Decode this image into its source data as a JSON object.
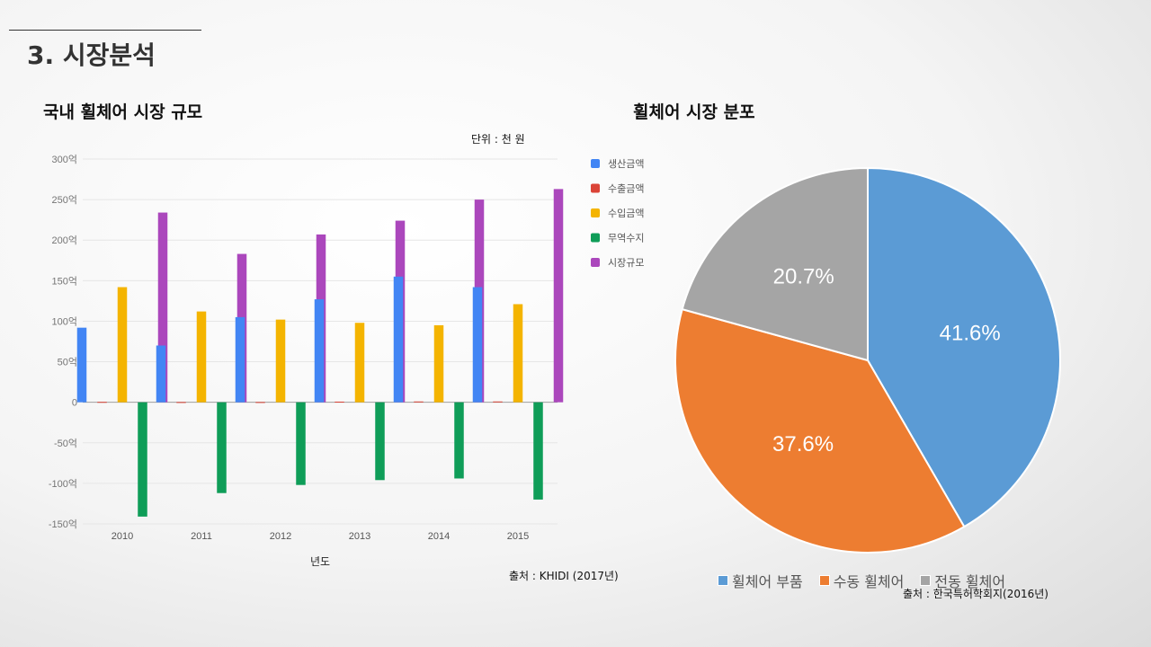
{
  "slide": {
    "title": "3. 시장분석"
  },
  "left_chart": {
    "title": "국내 휠체어 시장 규모",
    "unit_note": "단위 : 천 원",
    "source": "출처 : KHIDI (2017년)"
  },
  "right_chart": {
    "title": "휠체어 시장 분포",
    "source": "출처 : 한국특허학회지(2016년)"
  },
  "chart_data": [
    {
      "type": "bar",
      "title": "국내 휠체어 시장 규모",
      "xlabel": "년도",
      "ylabel": "",
      "categories": [
        "2010",
        "2011",
        "2012",
        "2013",
        "2014",
        "2015"
      ],
      "yticks": [
        300,
        250,
        200,
        150,
        100,
        50,
        0,
        -50,
        -100,
        -150
      ],
      "ytick_labels": [
        "300억",
        "250억",
        "200억",
        "150억",
        "100억",
        "50억",
        "0",
        "-50억",
        "-100억",
        "-150억"
      ],
      "ylim": [
        -150,
        300
      ],
      "grid": true,
      "legend_position": "right",
      "series": [
        {
          "name": "생산금액",
          "color": "#4285f4",
          "values": [
            92,
            70,
            105,
            127,
            155,
            142
          ]
        },
        {
          "name": "수출금액",
          "color": "#db4437",
          "values": [
            0.5,
            0.3,
            0.3,
            0.8,
            1,
            1
          ]
        },
        {
          "name": "수입금액",
          "color": "#f4b400",
          "values": [
            142,
            112,
            102,
            98,
            95,
            121
          ]
        },
        {
          "name": "무역수지",
          "color": "#0f9d58",
          "values": [
            -141,
            -112,
            -102,
            -96,
            -94,
            -120
          ]
        },
        {
          "name": "시장규모",
          "color": "#ab47bc",
          "values": [
            234,
            183,
            207,
            224,
            250,
            263
          ]
        }
      ]
    },
    {
      "type": "pie",
      "title": "휠체어 시장 분포",
      "legend_position": "bottom",
      "labels": [
        "휠체어 부품",
        "수동 휠체어",
        "전동 휠체어"
      ],
      "values": [
        41.6,
        37.6,
        20.7
      ],
      "value_labels": [
        "41.6%",
        "37.6%",
        "20.7%"
      ],
      "colors": [
        "#5b9bd5",
        "#ed7d31",
        "#a5a5a5"
      ]
    }
  ]
}
